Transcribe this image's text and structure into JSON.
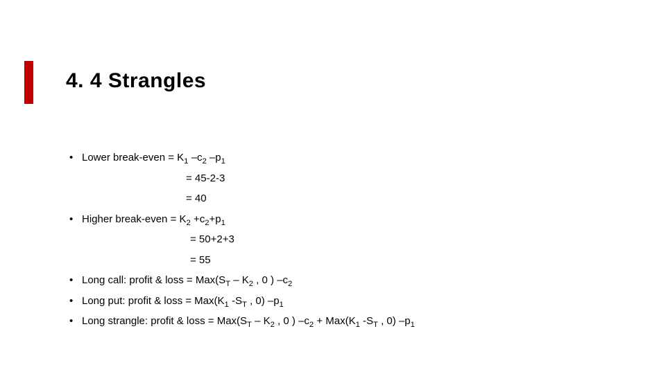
{
  "slide": {
    "title": "4. 4 Strangles",
    "accent_color": "#c00000",
    "background_color": "#ffffff",
    "text_color": "#000000",
    "title_fontsize": 30,
    "body_fontsize": 15,
    "bullets": [
      {
        "kind": "bullet",
        "segments": [
          {
            "t": "Lower break-even = K"
          },
          {
            "t": "1",
            "sub": true
          },
          {
            "t": " –c"
          },
          {
            "t": "2",
            "sub": true
          },
          {
            "t": " –p"
          },
          {
            "t": "1",
            "sub": true
          }
        ]
      },
      {
        "kind": "cont",
        "indent": 1,
        "segments": [
          {
            "t": "= 45-2-3"
          }
        ]
      },
      {
        "kind": "cont",
        "indent": 1,
        "segments": [
          {
            "t": "= 40"
          }
        ]
      },
      {
        "kind": "bullet",
        "segments": [
          {
            "t": "Higher break-even = K"
          },
          {
            "t": "2",
            "sub": true
          },
          {
            "t": " +c"
          },
          {
            "t": "2",
            "sub": true
          },
          {
            "t": "+p"
          },
          {
            "t": "1",
            "sub": true
          }
        ]
      },
      {
        "kind": "cont",
        "indent": 2,
        "segments": [
          {
            "t": "= 50+2+3"
          }
        ]
      },
      {
        "kind": "cont",
        "indent": 2,
        "segments": [
          {
            "t": "= 55"
          }
        ]
      },
      {
        "kind": "bullet",
        "segments": [
          {
            "t": "Long call: profit & loss = Max(S"
          },
          {
            "t": "T",
            "sub": true
          },
          {
            "t": " – K"
          },
          {
            "t": "2",
            "sub": true
          },
          {
            "t": " , 0 ) –c"
          },
          {
            "t": "2",
            "sub": true
          }
        ]
      },
      {
        "kind": "bullet",
        "segments": [
          {
            "t": "Long put: profit & loss = Max(K"
          },
          {
            "t": "1",
            "sub": true
          },
          {
            "t": " -S"
          },
          {
            "t": "T",
            "sub": true
          },
          {
            "t": " , 0) –p"
          },
          {
            "t": "1",
            "sub": true
          }
        ]
      },
      {
        "kind": "bullet",
        "segments": [
          {
            "t": "Long strangle: profit & loss = Max(S"
          },
          {
            "t": "T",
            "sub": true
          },
          {
            "t": " – K"
          },
          {
            "t": "2",
            "sub": true
          },
          {
            "t": " , 0 ) –c"
          },
          {
            "t": "2",
            "sub": true
          },
          {
            "t": "  + Max(K"
          },
          {
            "t": "1",
            "sub": true
          },
          {
            "t": " -S"
          },
          {
            "t": "T",
            "sub": true
          },
          {
            "t": " , 0) –p"
          },
          {
            "t": "1",
            "sub": true
          }
        ]
      }
    ]
  }
}
